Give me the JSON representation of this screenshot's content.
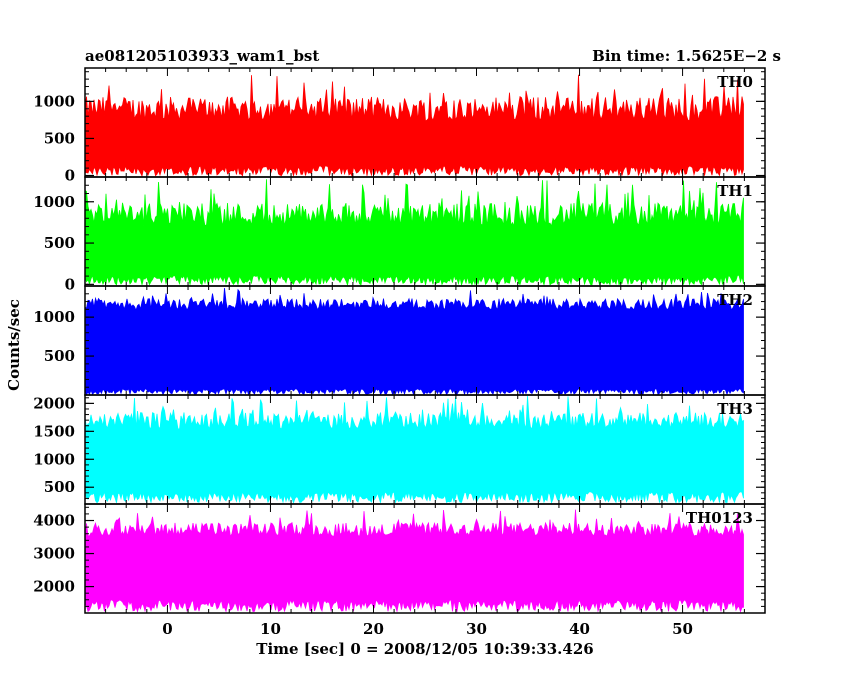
{
  "header": {
    "title": "ae081205103933_wam1_bst",
    "bin_time": "Bin time: 1.5625E−2 s"
  },
  "chart_data": {
    "type": "line",
    "xlabel": "Time [sec] 0 = 2008/12/05 10:39:33.426",
    "ylabel": "Counts/sec",
    "xlim": [
      -8,
      58
    ],
    "x_ticks": [
      0,
      10,
      20,
      30,
      40,
      50
    ],
    "data_x_range": [
      -8,
      56
    ],
    "panels": [
      {
        "name": "TH0",
        "color": "#ff0000",
        "ylim": [
          -20,
          1450
        ],
        "ticks": [
          0,
          500,
          1000
        ],
        "band": [
          130,
          800
        ],
        "spike_max": 1400
      },
      {
        "name": "TH1",
        "color": "#00ff00",
        "ylim": [
          -20,
          1300
        ],
        "ticks": [
          0,
          500,
          1000
        ],
        "band": [
          110,
          760
        ],
        "spike_max": 1280
      },
      {
        "name": "TH2",
        "color": "#0000ff",
        "ylim": [
          0,
          1400
        ],
        "ticks": [
          500,
          1000
        ],
        "band": [
          80,
          1120
        ],
        "spike_max": 1390
      },
      {
        "name": "TH3",
        "color": "#00ffff",
        "ylim": [
          200,
          2150
        ],
        "ticks": [
          500,
          1000,
          1500,
          2000
        ],
        "band": [
          420,
          1600
        ],
        "spike_max": 2140
      },
      {
        "name": "TH0123",
        "color": "#ff00ff",
        "ylim": [
          1200,
          4500
        ],
        "ticks": [
          2000,
          3000,
          4000
        ],
        "band": [
          1600,
          3600
        ],
        "spike_max": 4350
      }
    ]
  }
}
